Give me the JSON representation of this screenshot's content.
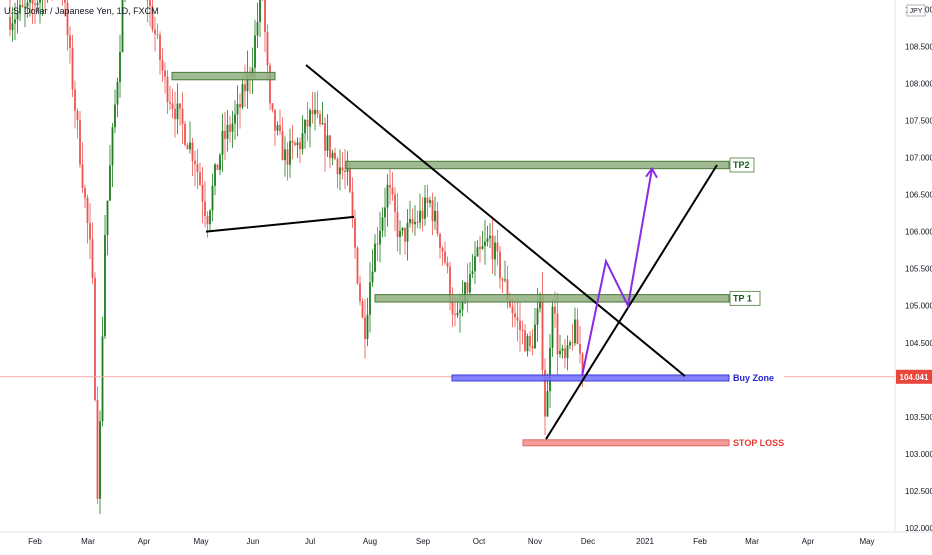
{
  "title": "U.S. Dollar / Japanese Yen, 1D, FXCM",
  "currency_badge": "JPY",
  "current_price_label": "104.041",
  "colors": {
    "up": "#26a69a",
    "up_dark": "#1b7d1b",
    "down": "#ef5350",
    "zone_green": "#8faf7f",
    "zone_green_border": "#4a7a3a",
    "buy_zone": "#6f6fff",
    "stop_loss": "#f28b82",
    "projection": "#8a2be2",
    "price_line": "#f7a7a7",
    "price_tag": "#e8453c",
    "axis_text": "#131722"
  },
  "chart_data": {
    "type": "candlestick",
    "title": "U.S. Dollar / Japanese Yen, 1D, FXCM",
    "x_ticks": [
      "Feb",
      "Mar",
      "Apr",
      "May",
      "Jun",
      "Jul",
      "Aug",
      "Sep",
      "Oct",
      "Nov",
      "Dec",
      "2021",
      "Feb",
      "Mar",
      "Apr",
      "May"
    ],
    "y_ticks": [
      102.0,
      102.5,
      103.0,
      103.5,
      104.0,
      104.5,
      105.0,
      105.5,
      106.0,
      106.5,
      107.0,
      107.5,
      108.0,
      108.5,
      109.0
    ],
    "y_tick_labels": [
      "102.000",
      "102.500",
      "103.000",
      "103.500",
      "104.000",
      "104.500",
      "105.000",
      "105.500",
      "106.000",
      "106.500",
      "107.000",
      "107.500",
      "108.000",
      "108.500",
      "109.000"
    ],
    "ylim": [
      102.0,
      109.1
    ],
    "current_price": 104.041,
    "zones": [
      {
        "label": "",
        "from": "Apr",
        "to": "Jun",
        "low": 108.05,
        "high": 108.15,
        "kind": "resistance"
      },
      {
        "label": "TP2",
        "from": "Jul",
        "to": "Feb",
        "low": 106.85,
        "high": 106.95,
        "kind": "target"
      },
      {
        "label": "TP 1",
        "from": "Aug",
        "to": "Feb",
        "low": 105.05,
        "high": 105.15,
        "kind": "target"
      },
      {
        "label": "Buy Zone",
        "from": "Sep",
        "to": "Feb",
        "low": 104.0,
        "high": 104.05,
        "kind": "entry"
      },
      {
        "label": "STOP LOSS",
        "from": "Oct",
        "to": "Feb",
        "low": 103.12,
        "high": 103.18,
        "kind": "stop"
      }
    ],
    "trendlines": [
      {
        "kind": "downtrend",
        "points": [
          [
            "Jul",
            108.25
          ],
          [
            "Jan",
            104.05
          ]
        ]
      },
      {
        "kind": "neckline",
        "points": [
          [
            "May",
            106.0
          ],
          [
            "Jul",
            106.2
          ]
        ]
      },
      {
        "kind": "uptrend",
        "points": [
          [
            "Nov",
            103.2
          ],
          [
            "Jan",
            106.9
          ]
        ]
      }
    ],
    "projection_path": [
      [
        "Dec",
        104.05
      ],
      [
        "Dec",
        105.6
      ],
      [
        "Dec",
        105.0
      ],
      [
        "Jan",
        106.85
      ]
    ]
  }
}
